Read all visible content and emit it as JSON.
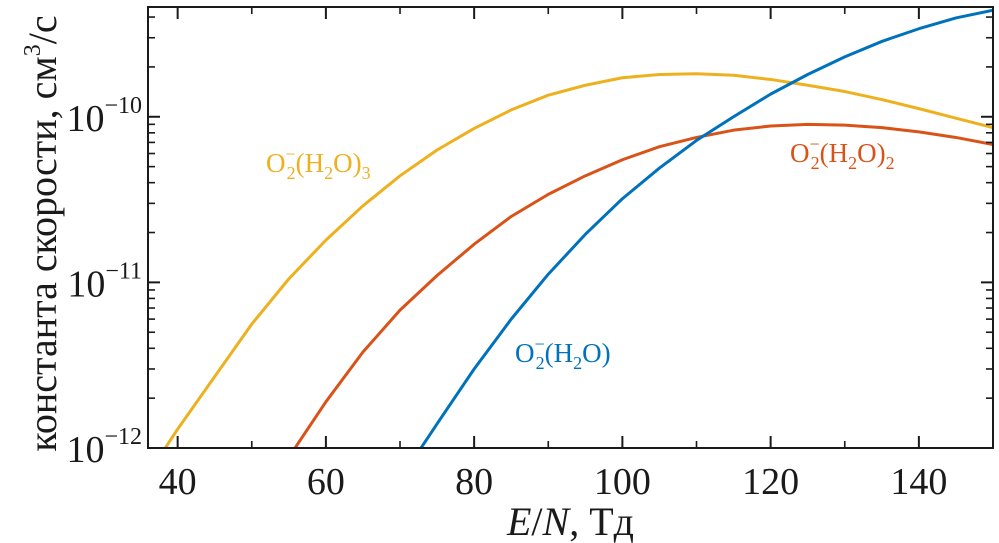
{
  "chart_data": {
    "type": "line",
    "xlabel": "E/N, Тд",
    "xlabel_parts": {
      "e": "E",
      "slash": "/",
      "n": "N",
      "unit": ", Тд"
    },
    "ylabel": "константа скорости, см³/с",
    "ylabel_parts": {
      "main": "константа скорости, см",
      "sup": "3",
      "tail": "/с"
    },
    "xlim": [
      36,
      150
    ],
    "ylim": [
      1e-12,
      4.6e-10
    ],
    "yscale": "log",
    "grid": false,
    "x_ticks": [
      40,
      60,
      80,
      100,
      120,
      140
    ],
    "x_tick_labels": [
      "40",
      "60",
      "80",
      "100",
      "120",
      "140"
    ],
    "y_ticks": [
      {
        "value": 1e-12,
        "base": "10",
        "exp": "−12"
      },
      {
        "value": 1e-11,
        "base": "10",
        "exp": "−11"
      },
      {
        "value": 1e-10,
        "base": "10",
        "exp": "−10"
      }
    ],
    "series": [
      {
        "name": "O2−(H2O)3",
        "label_parts": {
          "o": "O",
          "o_sub": "2",
          "o_sup": "−",
          "open": "(H",
          "h_sub": "2",
          "mid": "O)",
          "n_sub": "3"
        },
        "color": "#EDB120",
        "x": [
          38,
          40,
          45,
          50,
          55,
          60,
          65,
          70,
          75,
          80,
          85,
          90,
          95,
          100,
          105,
          110,
          115,
          120,
          125,
          130,
          135,
          140,
          145,
          150
        ],
        "y": [
          9.5e-13,
          1.3e-12,
          2.7e-12,
          5.6e-12,
          1.05e-11,
          1.8e-11,
          2.9e-11,
          4.4e-11,
          6.3e-11,
          8.5e-11,
          1.1e-10,
          1.35e-10,
          1.55e-10,
          1.72e-10,
          1.8e-10,
          1.82e-10,
          1.78e-10,
          1.68e-10,
          1.55e-10,
          1.42e-10,
          1.27e-10,
          1.12e-10,
          9.8e-11,
          8.6e-11
        ]
      },
      {
        "name": "O2−(H2O)2",
        "label_parts": {
          "o": "O",
          "o_sub": "2",
          "o_sup": "−",
          "open": "(H",
          "h_sub": "2",
          "mid": "O)",
          "n_sub": "2"
        },
        "color": "#D95319",
        "x": [
          55.5,
          60,
          65,
          70,
          75,
          80,
          85,
          90,
          95,
          100,
          105,
          110,
          115,
          120,
          125,
          130,
          135,
          140,
          145,
          150
        ],
        "y": [
          9.5e-13,
          1.9e-12,
          3.8e-12,
          6.8e-12,
          1.1e-11,
          1.7e-11,
          2.5e-11,
          3.4e-11,
          4.4e-11,
          5.5e-11,
          6.6e-11,
          7.5e-11,
          8.3e-11,
          8.8e-11,
          9e-11,
          8.9e-11,
          8.6e-11,
          8.1e-11,
          7.5e-11,
          6.8e-11
        ]
      },
      {
        "name": "O2−(H2O)",
        "label_parts": {
          "o": "O",
          "o_sub": "2",
          "o_sup": "−",
          "open": "(H",
          "h_sub": "2",
          "mid": "O)",
          "n_sub": ""
        },
        "color": "#0072BD",
        "x": [
          72.5,
          75,
          80,
          85,
          90,
          95,
          100,
          105,
          110,
          115,
          120,
          125,
          130,
          135,
          140,
          145,
          150
        ],
        "y": [
          9.5e-13,
          1.4e-12,
          3e-12,
          6e-12,
          1.12e-11,
          1.95e-11,
          3.2e-11,
          4.9e-11,
          7.2e-11,
          1e-10,
          1.37e-10,
          1.8e-10,
          2.3e-10,
          2.85e-10,
          3.4e-10,
          3.95e-10,
          4.4e-10
        ]
      }
    ]
  }
}
